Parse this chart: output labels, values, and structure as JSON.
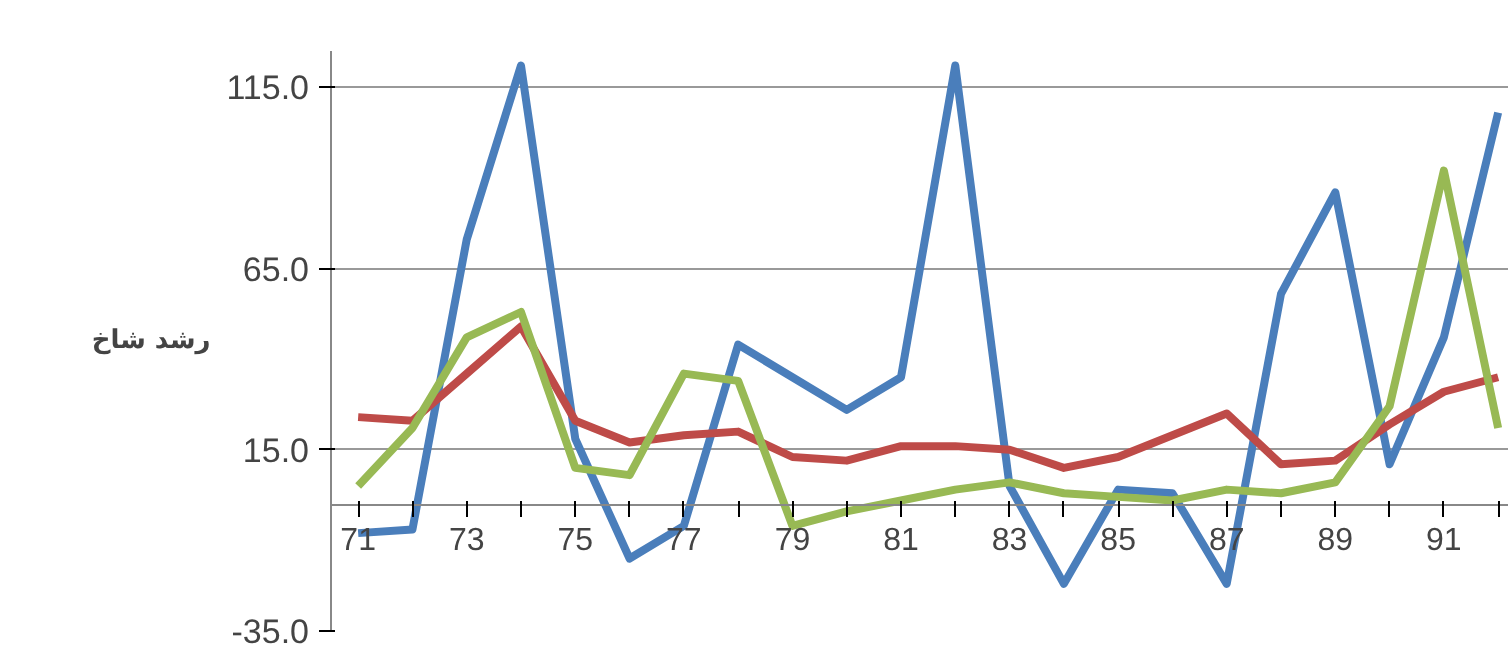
{
  "chart_data": {
    "type": "line",
    "ylabel": "رشد شاخ",
    "categories": [
      "71",
      null,
      "73",
      null,
      "75",
      null,
      "77",
      null,
      "79",
      null,
      "81",
      null,
      "83",
      null,
      "85",
      null,
      "87",
      null,
      "89",
      null,
      "91",
      null
    ],
    "series": [
      {
        "color": "#4a7ebb",
        "values": [
          -8,
          -7,
          73,
          121,
          18,
          -15,
          -6,
          44,
          35,
          26,
          35,
          121,
          5,
          -22,
          4,
          3,
          -22,
          58,
          86,
          11,
          46,
          108
        ]
      },
      {
        "color": "#be4b48",
        "values": [
          24,
          23,
          36,
          49,
          23,
          17,
          19,
          20,
          13,
          12,
          16,
          16,
          15,
          10,
          13,
          19,
          25,
          11,
          12,
          22,
          31,
          35
        ]
      },
      {
        "color": "#98b954",
        "values": [
          5,
          21,
          46,
          53,
          10,
          8,
          36,
          34,
          -6,
          -2,
          1,
          4,
          6,
          3,
          2,
          1,
          4,
          3,
          6,
          27,
          92,
          21
        ]
      }
    ],
    "ylim": [
      -35,
      125
    ],
    "yticks": [
      {
        "value": -35,
        "label": "-35.0"
      },
      {
        "value": 15,
        "label": "15.0"
      },
      {
        "value": 65,
        "label": "65.0"
      },
      {
        "value": 115,
        "label": "115.0"
      }
    ],
    "grid": "y"
  }
}
